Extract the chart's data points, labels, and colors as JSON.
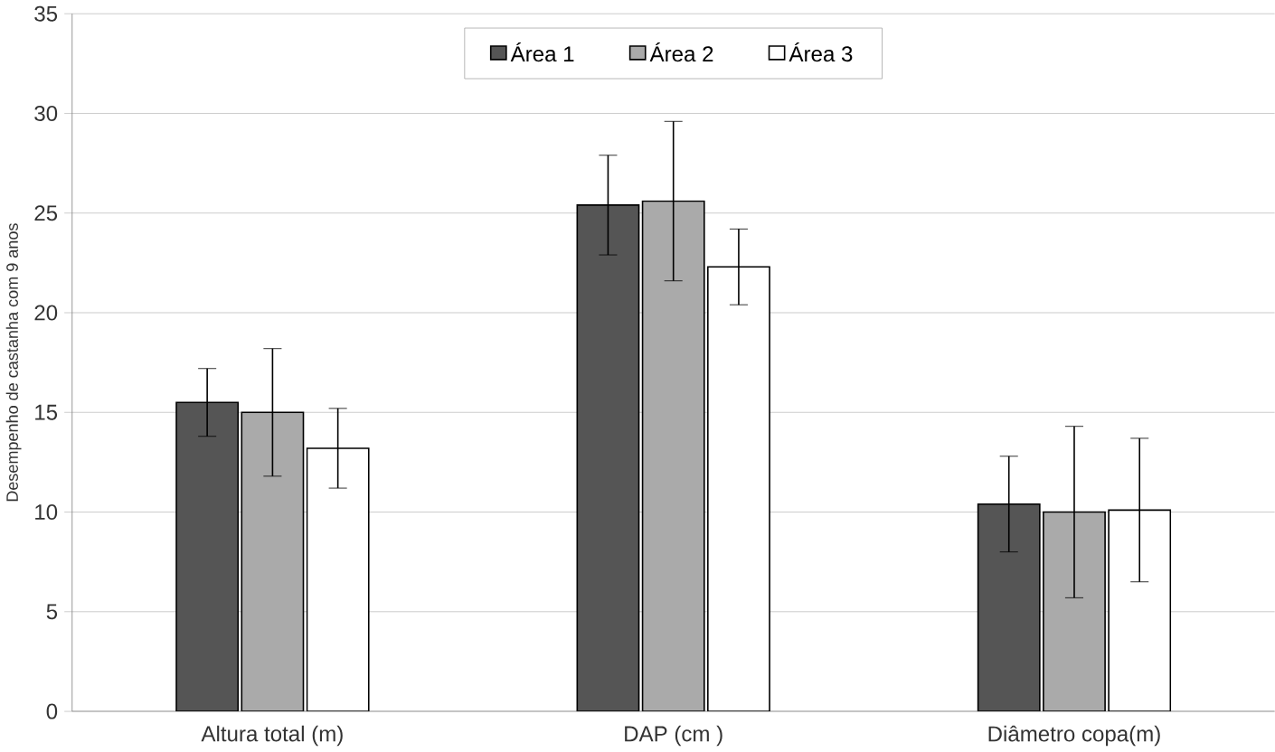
{
  "chart_data": {
    "type": "bar",
    "ylabel": "Desempenho de castanha com 9 anos",
    "categories": [
      "Altura total (m)",
      "DAP (cm )",
      "Diâmetro copa(m)"
    ],
    "series": [
      {
        "name": "Área 1",
        "color": "#555555",
        "values": [
          15.5,
          25.4,
          10.4
        ],
        "errors": [
          1.7,
          2.5,
          2.4
        ]
      },
      {
        "name": "Área 2",
        "color": "#aaaaaa",
        "values": [
          15.0,
          25.6,
          10.0
        ],
        "errors": [
          3.2,
          4.0,
          4.3
        ]
      },
      {
        "name": "Área 3",
        "color": "#ffffff",
        "values": [
          13.2,
          22.3,
          10.1
        ],
        "errors": [
          2.0,
          1.9,
          3.6
        ]
      }
    ],
    "ylim": [
      0,
      35
    ],
    "yticks": [
      0,
      5,
      10,
      15,
      20,
      25,
      30,
      35
    ],
    "grid": "y",
    "legend": "top"
  }
}
